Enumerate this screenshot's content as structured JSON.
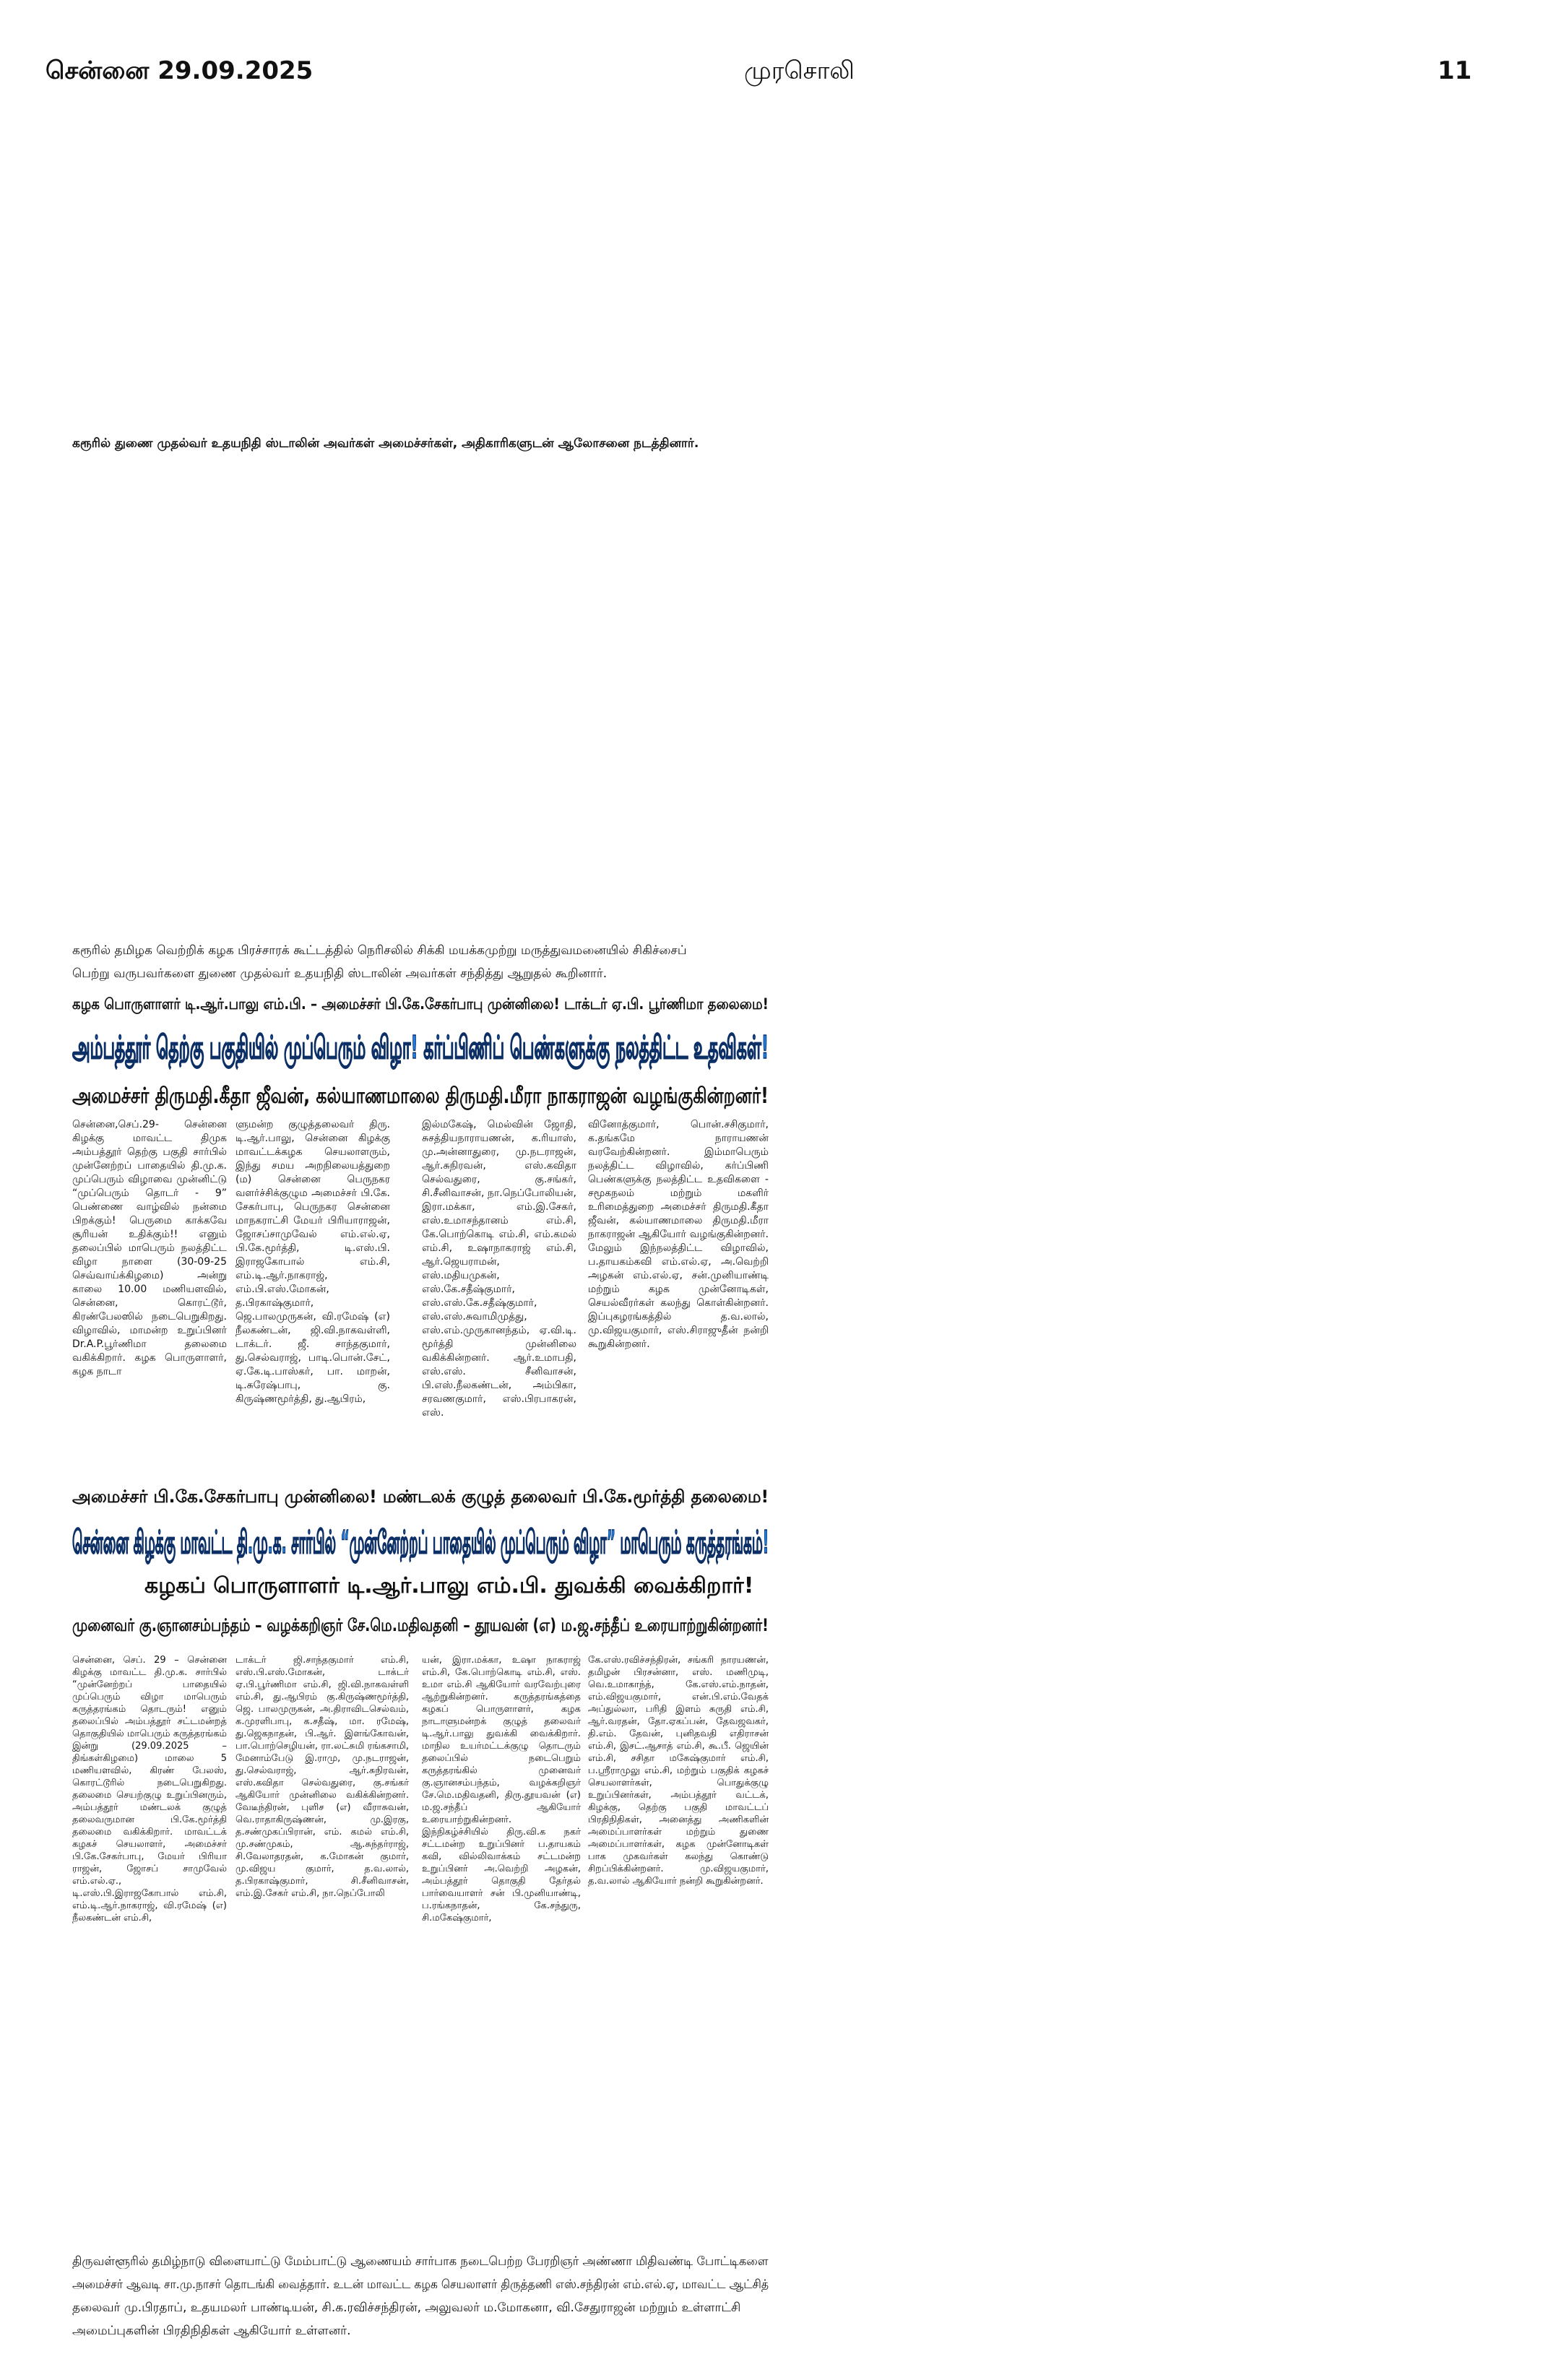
{
  "header": {
    "date": "சென்னை 29.09.2025",
    "paper": "முரசொலி",
    "page": "11"
  },
  "caption_1": "கரூரில் துணை முதல்வர் உதயநிதி ஸ்டாலின் அவர்கள் அமைச்சர்கள், அதிகாரிகளுடன் ஆலோசனை நடத்தினார்.",
  "caption_2": [
    "கரூரில் தமிழக வெற்றிக் கழக பிரச்சாரக் கூட்டத்தில் நெரிசலில் சிக்கி மயக்கமுற்று மருத்துவமனையில் சிகிச்சைப்",
    "பெற்று வருபவர்களை துணை முதல்வர் உதயநிதி ஸ்டாலின் அவர்கள் சந்தித்து ஆறுதல் கூறினார்."
  ],
  "stories": [
    {
      "kicker": "கழக பொருளாளர் டி.ஆர்.பாலு எம்.பி. – அமைச்சர் பி.கே.சேகர்பாபு முன்னிலை! டாக்டர் ஏ.பி. பூர்ணிமா தலைமை!",
      "headline": "அம்பத்தூர் தெற்கு பகுதியில் முப்பெரும் விழா! கர்ப்பிணிப் பெண்களுக்கு நலத்திட்ட உதவிகள்!",
      "subheads": [
        "அமைச்சர் திருமதி.கீதா ஜீவன், கல்யாணமாலை திருமதி.மீரா நாகராஜன் வழங்குகின்றனர்!"
      ],
      "columns": [
        "சென்னை,செப்.29- சென்னை கிழக்கு மாவட்ட திமுக அம்பத்தூர் தெற்கு பகுதி சார்பில் முன்னேற்றப் பாதையில் தி.மு.க. முப்பெரும் விழாவை முன்னிட்டு “முப்பெரும் தொடர் - 9” பெண்ணை வாழ்வில் நன்மை பிறக்கும்! பெருமை காக்கவே சூரியன் உதிக்கும்!! எனும் தலைப்பில் மாபெரும் நலத்திட்ட விழா நாளை (30-09-25 செவ்வாய்க்கிழமை) அன்று காலை 10.00 மணியளவில், சென்னை, கொரட்டூர், கிரண்பேலஸில் நடைபெறுகிறது. விழாவில், மாமன்ற உறுப்பினர் Dr.A.P.பூர்ணிமா தலைமை வகிக்கிறார். கழக பொருளாளர், கழக நாடா",
        "ளுமன்ற குழுத்தலைவர் திரு. டி.ஆர்.பாலு, சென்னை கிழக்கு மாவட்டக்கழக செயலாளரும், இந்து சமய அறநிலையத்துறை (ம) சென்னை பெருநகர வளர்ச்சிக்குழும அமைச்சர் பி.கே. சேகர்பாபு, பெருநகர சென்னை மாநகராட்சி மேயர் பிரியாராஜன், ஜோசப்சாமுவேல் எம்.எல்.ஏ, பி.கே.மூர்த்தி, டி.எஸ்.பி. இராஜகோபால் எம்.சி, எம்.டி.ஆர்.நாகராஜ், எம்.பி.எஸ்.மோகன், த.பிரகாஷ்குமார், ஜெ.பாலமுருகன், வி.ரமேஷ் (எ) நீலகண்டன், ஜி.வி.நாகவள்ளி, டாக்டர். ஜீ. சாந்தகுமார், து.செல்வராஜ், பாடி.பொன்.சேட், ஏ.கே.டி.பாஸ்கர், பா. மாறன், டி.சுரேஷ்பாபு, கு. கிருஷ்ணமூர்த்தி, து.ஆபிரம்,",
        "இல்மகேஷ், மெல்வின் ஜோதி, சுசத்தியநாராயணன், க.ரியாஸ், மு.அன்னாதுரை, மு.நடராஜன், ஆர்.சுநிரவன், எஸ்.கவிதா செல்வதுரை, கு.சங்கர், சி.சீனிவாசன், நா.நெப்போலியன், இரா.மக்கா, எம்.இ.சேகர், எஸ்.உமாசந்தானம் எம்.சி, கே.பொற்கொடி எம்.சி, எம்.கமல் எம்.சி, உஷாநாகராஜ் எம்.சி, ஆர்.ஜெயராமன், எஸ்.மதியமுகன், எஸ்.கே.சதீஷ்குமார், எஸ்.எஸ்.கே.சதீஷ்குமார், எஸ்.எஸ்.சுவாமிமுத்து, எஸ்.எம்.முருகானந்தம், ஏ.வி.டி. மூர்த்தி முன்னிலை வகிக்கின்றனர். ஆர்.உமாபதி, எஸ்.எஸ். சீனிவாசன், பி.எஸ்.நீலகண்டன், அம்பிகா, சரவணகுமார், எஸ்.பிரபாகரன், எஸ்.",
        "வினோத்குமார், பொன்.சசிகுமார், க.தங்கமே நாராயணன் வரவேற்கின்றனர். இம்மாபெரும் நலத்திட்ட விழாவில், கர்ப்பிணி பெண்களுக்கு நலத்திட்ட உதவிகளை - சமூகநலம் மற்றும் மகளிர் உரிமைத்துறை அமைச்சர் திருமதி.கீதா ஜீவன், கல்யாணமாலை திருமதி.மீரா நாகராஜன் ஆகியோர் வழங்குகின்றனர். மேலும் இந்நலத்திட்ட விழாவில், ப.தாயகம்கவி எம்.எல்.ஏ, அ.வெற்றி அழகன் எம்.எல்.ஏ, சன்.முனியாண்டி மற்றும் கழக முன்னோடிகள், செயல்வீரர்கள் கலந்து கொள்கின்றனர். இப்புகழரங்கத்தில் த.வ.லால், மு.விஜயகுமார், எஸ்.சிராஜுதீன் நன்றி கூறுகின்றனர்."
      ]
    },
    {
      "kicker": "அமைச்சர் பி.கே.சேகர்பாபு முன்னிலை! மண்டலக் குழுத் தலைவர் பி.கே.மூர்த்தி தலைமை!",
      "headline": "சென்னை கிழக்கு மாவட்ட தி.மு.க. சார்பில் “முன்னேற்றப் பாதையில் முப்பெரும் விழா” மாபெரும் கருத்தரங்கம்!",
      "subheads": [
        "கழகப் பொருளாளர் டி.ஆர்.பாலு எம்.பி. துவக்கி வைக்கிறார்!",
        "முனைவர் கு.ஞானசம்பந்தம் – வழக்கறிஞர் சே.மெ.மதிவதனி – தூயவன் (எ) ம.ஜ.சந்தீப் உரையாற்றுகின்றனர்!"
      ],
      "columns": [
        "சென்னை, செப். 29 – சென்னை கிழக்கு மாவட்ட தி.மு.க. சார்பில் “முன்னேற்றப் பாதையில் முப்பெரும் விழா மாபெரும் கருத்தரங்கம் தொடரும்! எனும் தலைப்பில் அம்பத்தூர் சட்டமன்றத் தொகுதியில் மாபெரும் கருத்தரங்கம் இன்று (29.09.2025 – திங்கள்கிழமை) மாலை 5 மணியளவில், கிரண் பேலஸ், கொரட்டூரில் நடைபெறுகிறது. தலைமை செயற்குழு உறுப்பினரும், அம்பத்தூர் மண்டலக் குழுத் தலைவருமான பி.கே.மூர்த்தி தலைமை வகிக்கிறார். மாவட்டக் கழகச் செயலாளர், அமைச்சர் பி.கே.சேகர்பாபு, மேயர் பிரியா ராஜன், ஜோசப் சாமுவேல் எம்.எல்.ஏ., டி.எஸ்.பி.இராஜகோபால் எம்.சி, எம்.டி.ஆர்.நாகராஜ், வி.ரமேஷ் (எ) நீலகண்டன் எம்.சி,",
        "டாக்டர் ஜி.சாந்தகுமார் எம்.சி, எஸ்.பி.எஸ்.மோகன், டாக்டர் ஏ.பி.பூர்ணிமா எம்.சி, ஜி.வி.நாகவள்ளி எம்.சி, து.ஆபிரம் கு.கிருஷ்ணமூர்த்தி, ஜெ. பாலமுருகன், அ.திராவிடசெல்வம், க.முரளிபாபு, க.சதீஷ், மா. ரமேஷ், து.ஜெகநாதன், பி.ஆர். இளங்கோவன், பா.பொற்செழியன், ரா.லட்சுமி ரங்கசாமி, மேனாம்பேடு இ.ராமு, மு.நடராஜன், து.செல்வராஜ், ஆர்.சுநிரவன், எஸ்.கவிதா செல்வதுரை, கு.சங்கர் ஆகியோர் முன்னிலை வகிக்கின்றனர். வேடீந்திரன், புளிச (எ) வீராசுவன், வெ.ராதாகிருஷ்ணன், மு.இரகு, த.சண்முகப்பிரான், எம். கமல் எம்.சி, மு.சண்முகம், ஆ.சுந்தர்ராஜ், சி.வேலாதரதன், க.மோகன் குமார், மு.விஜய குமார், த.வ.லால், த.பிரகாஷ்குமார், சி.சீனிவாசன், எம்.இ.சேகர் எம்.சி, நா.நெப்போலி",
        "யன், இரா.மக்கா, உஷா நாகராஜ் எம்.சி, கே.பொற்கொடி எம்.சி, எஸ். உமா எம்.சி ஆகியோர் வரவேற்புரை ஆற்றுகின்றனர். கருத்தரங்கத்தை கழகப் பொருளாளர், கழக நாடாளுமன்றக் குழுத் தலைவர் டி.ஆர்.பாலு துவக்கி வைக்கிறார். மாநில உயர்மட்டக்குழு தொடரும் தலைப்பில் நடைபெறும் கருத்தரங்கில் முனைவர் கு.ஞானசம்பந்தம், வழக்கறிஞர் சே.மெ.மதிவதனி, திரு.தூயவன் (எ) ம.ஜ.சந்தீப் ஆகியோர் உரையாற்றுகின்றனர். இந்நிகழ்ச்சியில் திரு.வி.க நகர் சட்டமன்ற உறுப்பினர் ப.தாயகம் கவி, வில்லிவாக்கம் சட்டமன்ற உறுப்பினர் அ.வெற்றி அழகன், அம்பத்தூர் தொகுதி தேர்தல் பார்வையாளர் சன் பி.முனியாண்டி, ப.ரங்கநாதன், கே.சந்துரு, சி.மகேஷ்குமார்,",
        "கே.எஸ்.ரவிச்சந்திரன், சங்கரி நாரயணன், தமிழன் பிரசன்னா, எஸ். மணிமுடி, வெ.உமாகாந்த், கே.எஸ்.எம்.நாதன், எம்.விஜயகுமார், என்.பி.எம்.வேதக் அப்துல்லா, பரிதி இளம் சுருதி எம்.சி, ஆர்.வரதன், தோ.ஏகப்பன், தேவஜவகர், தி.எம். தேவன், புனிதவதி எதிராசன் எம்.சி, இசட்.ஆசாத் எம்.சி, கூ.பீ. ஜெயின் எம்.சி, சசிதா மகேஷ்குமார் எம்.சி, ப.ஸ்ரீராமுலு எம்.சி, மற்றும் பகுதிக் கழகச் செயலாளர்கள், பொதுக்குழு உறுப்பினர்கள், அம்பத்தூர் வட்டக், கிழக்கு, தெற்கு பகுதி மாவட்டப் பிரதிநிதிகள், அனைத்து அணிகளின் அமைப்பாளர்கள் மற்றும் துணை அமைப்பாளர்கள், கழக முன்னோடிகள் பாக முகவர்கள் கலந்து கொண்டு சிறப்பிக்கின்றனர். மு.விஜயகுமார், த.வ.லால் ஆகியோர் நன்றி கூறுகின்றனர்."
      ]
    }
  ],
  "caption_3": [
    "திருவள்ளூரில் தமிழ்நாடு விளையாட்டு மேம்பாட்டு ஆணையம் சார்பாக நடைபெற்ற பேரறிஞர் அண்ணா மிதிவண்டி போட்டிகளை",
    "அமைச்சர் ஆவடி சா.மு.நாசர் தொடங்கி வைத்தார். உடன் மாவட்ட கழக செயலாளர் திருத்தணி எஸ்.சந்திரன் எம்.எல்.ஏ, மாவட்ட ஆட்சித்",
    "தலைவர் மு.பிரதாப், உதயமலர் பாண்டியன், சி.க.ரவிச்சந்திரன், அலுவலர் ம.மோகனா, வி.சேதுராஜன் மற்றும் உள்ளாட்சி",
    "அமைப்புகளின் பிரதிநிதிகள் ஆகியோர் உள்ளனர்."
  ]
}
